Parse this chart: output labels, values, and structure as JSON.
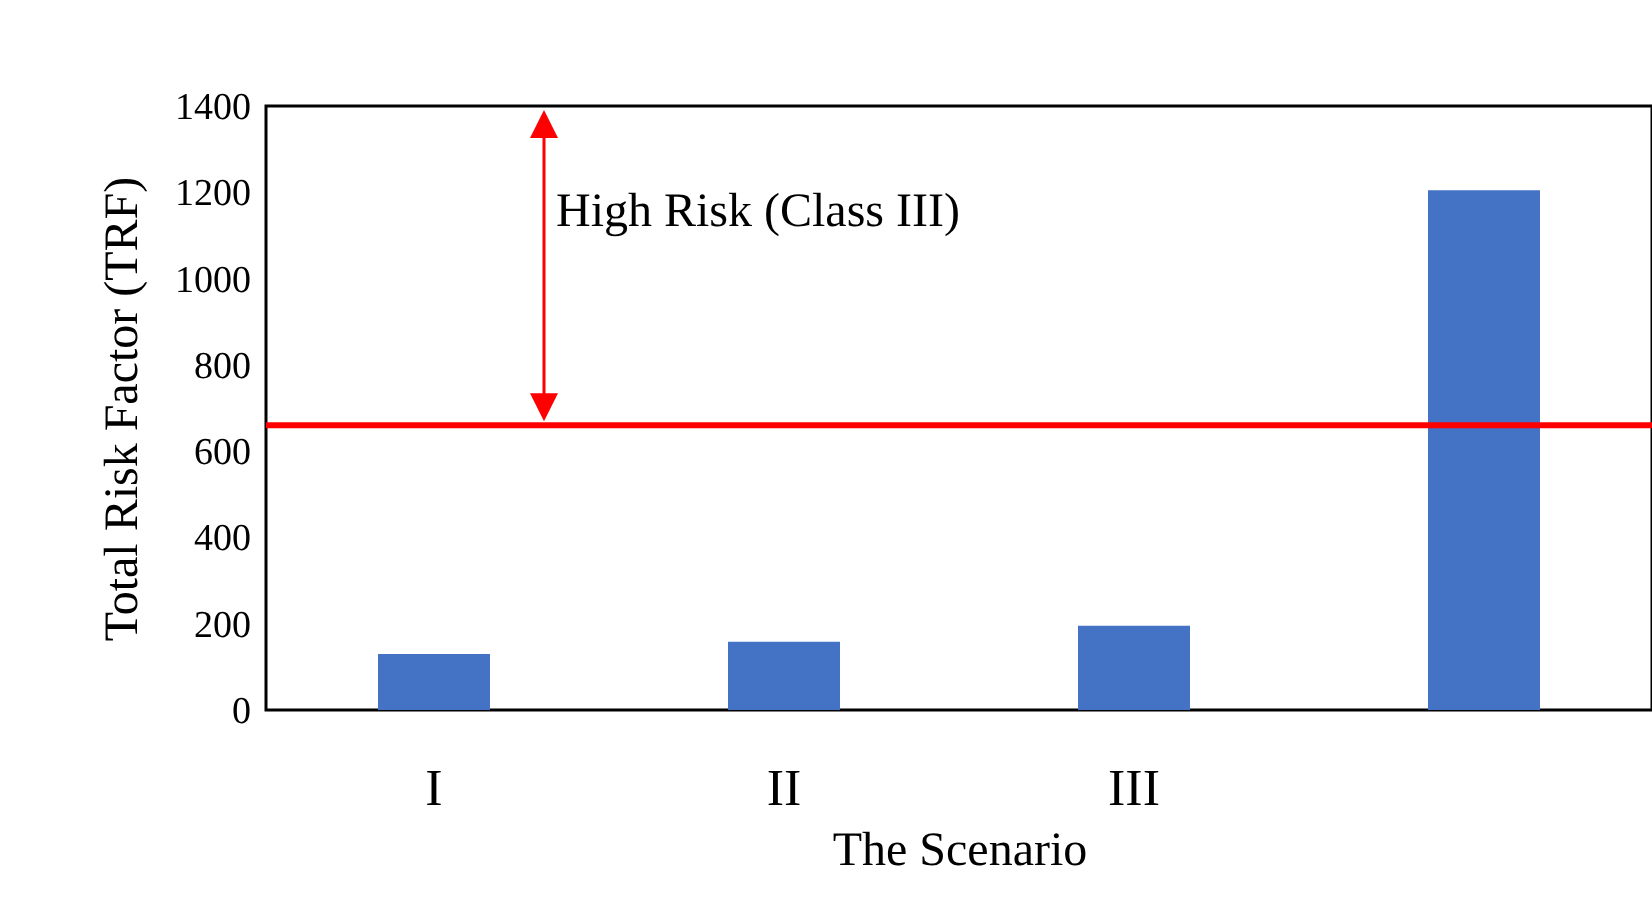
{
  "chart_data": {
    "type": "bar",
    "xlabel": "The Scenario",
    "ylabel": "Total Risk Factor (TRF)",
    "categories": [
      "I",
      "II",
      "III",
      null
    ],
    "values": [
      130,
      158,
      195,
      1205
    ],
    "color": "#4472c4",
    "ylim": [
      0,
      1400
    ],
    "yticks": [
      0,
      200,
      400,
      600,
      800,
      1000,
      1200,
      1400
    ],
    "grid": false,
    "ref_lines": [
      {
        "axis": "y",
        "value": 660,
        "color": "#ff0000"
      }
    ],
    "annotations": [
      "High Risk (Class III)"
    ]
  }
}
